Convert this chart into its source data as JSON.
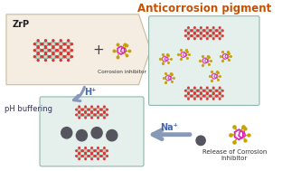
{
  "title": "Anticorrosion pigment",
  "title_color": "#c85000",
  "title_fontsize": 8.5,
  "bg_color": "#ffffff",
  "pent_bg": "#f5ece0",
  "pent_edge": "#c8b898",
  "box_bg": "#e5f0ec",
  "box_edge": "#90b8a8",
  "arrow_color": "#8898b8",
  "zrp_label": "ZrP",
  "corr_inh_label": "Corrosion inhibitor",
  "ph_buff_label": "pH buffering",
  "hplus_label": "H⁺",
  "naplus_label": "Na⁺",
  "release_label": "Release of Corrosion\ninhibitor",
  "plus_sign": "+",
  "tet_color": "#40b8a0",
  "ball_color": "#d8d5c0",
  "red_color": "#dd3333",
  "mag_color": "#dd22bb",
  "yel_color": "#c8a000",
  "dark_sphere": "#555560"
}
